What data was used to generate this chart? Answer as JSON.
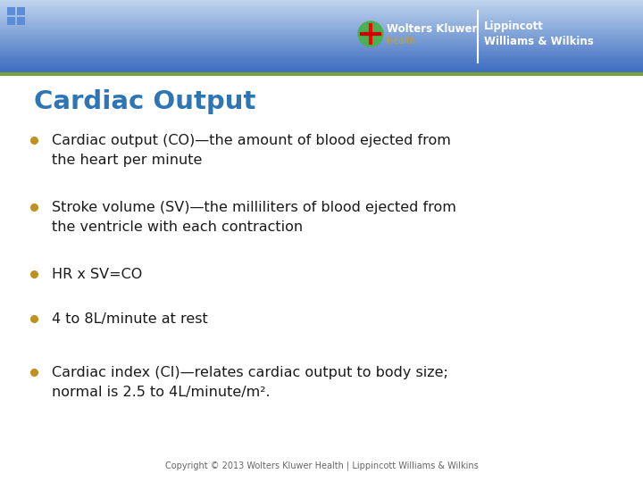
{
  "title": "Cardiac Output",
  "title_color": "#2E75B6",
  "bullet_color": "#C09020",
  "text_color": "#1a1a1a",
  "background_color": "#ffffff",
  "header_gradient_top": "#4472C4",
  "header_gradient_bottom": "#B8D0E8",
  "header_line_color": "#7BA03A",
  "copyright_text": "Copyright © 2013 Wolters Kluwer Health | Lippincott Williams & Wilkins",
  "bullets": [
    {
      "line1": "Cardiac output (CO)—the amount of blood ejected from",
      "line2": "the heart per minute"
    },
    {
      "line1": "Stroke volume (SV)—the milliliters of blood ejected from",
      "line2": "the ventricle with each contraction"
    },
    {
      "line1": "HR x SV=CO",
      "line2": null
    },
    {
      "line1": "4 to 8L/minute at rest",
      "line2": null
    },
    {
      "line1": "Cardiac index (CI)—relates cardiac output to body size;",
      "line2": "normal is 2.5 to 4L/minute/m²."
    }
  ]
}
